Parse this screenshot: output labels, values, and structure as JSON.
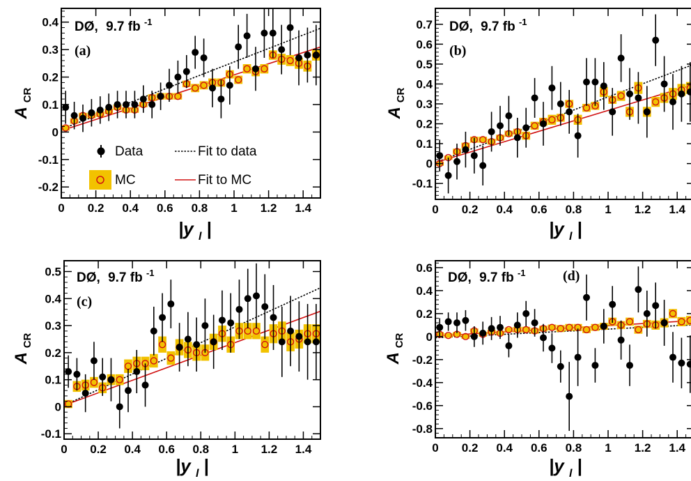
{
  "figure": {
    "colors": {
      "data_marker": "#000000",
      "mc_box": "#f2c200",
      "mc_marker": "#d01010",
      "fit_mc": "#d01010",
      "fit_data": "#000000",
      "frame": "#000000"
    },
    "legend": {
      "data": "Data",
      "fit_data": "Fit to data",
      "mc": "MC",
      "fit_mc": "Fit to MC"
    }
  },
  "chart_data": [
    {
      "type": "scatter",
      "panel_label": "(a)",
      "experiment": "DØ,",
      "lumi_value": "9.7 fb",
      "lumi_exp": "-1",
      "ylabel_main": "A",
      "ylabel_sub": "CR",
      "xlabel_main": "|y",
      "xlabel_sub": "l",
      "xlabel_end": "|",
      "xlim": [
        0,
        1.5
      ],
      "ylim": [
        -0.24,
        0.45
      ],
      "x_ticks": [
        0,
        0.2,
        0.4,
        0.6,
        0.8,
        1,
        1.2,
        1.4
      ],
      "x_tick_labels": [
        "0",
        "0.2",
        "0.4",
        "0.6",
        "0.8",
        "1",
        "1.2",
        "1.4"
      ],
      "y_ticks": [
        -0.2,
        -0.1,
        0,
        0.1,
        0.2,
        0.3,
        0.4
      ],
      "y_tick_labels": [
        "-0.2",
        "-0.1",
        "0",
        "0.1",
        "0.2",
        "0.3",
        "0.4"
      ],
      "legend_visible": true,
      "data": {
        "x": [
          0.025,
          0.075,
          0.125,
          0.175,
          0.225,
          0.275,
          0.325,
          0.375,
          0.425,
          0.475,
          0.525,
          0.575,
          0.625,
          0.675,
          0.725,
          0.775,
          0.825,
          0.875,
          0.925,
          0.975,
          1.025,
          1.075,
          1.125,
          1.175,
          1.225,
          1.275,
          1.325,
          1.375,
          1.425,
          1.475
        ],
        "y": [
          0.09,
          0.06,
          0.05,
          0.07,
          0.08,
          0.09,
          0.1,
          0.1,
          0.1,
          0.12,
          0.1,
          0.13,
          0.17,
          0.2,
          0.22,
          0.29,
          0.27,
          0.16,
          0.12,
          0.17,
          0.31,
          0.35,
          0.23,
          0.36,
          0.36,
          0.3,
          0.38,
          0.27,
          0.28,
          0.28
        ],
        "err": [
          0.06,
          0.05,
          0.05,
          0.05,
          0.05,
          0.05,
          0.05,
          0.05,
          0.05,
          0.05,
          0.05,
          0.05,
          0.06,
          0.06,
          0.06,
          0.06,
          0.07,
          0.07,
          0.07,
          0.07,
          0.08,
          0.08,
          0.08,
          0.09,
          0.09,
          0.09,
          0.1,
          0.1,
          0.1,
          0.11
        ]
      },
      "mc": {
        "x": [
          0.025,
          0.075,
          0.125,
          0.175,
          0.225,
          0.275,
          0.325,
          0.375,
          0.425,
          0.475,
          0.525,
          0.575,
          0.625,
          0.675,
          0.725,
          0.775,
          0.825,
          0.875,
          0.925,
          0.975,
          1.025,
          1.075,
          1.125,
          1.175,
          1.225,
          1.275,
          1.325,
          1.375,
          1.425,
          1.475
        ],
        "y": [
          0.015,
          0.04,
          0.06,
          0.06,
          0.065,
          0.075,
          0.09,
          0.08,
          0.08,
          0.1,
          0.125,
          0.13,
          0.13,
          0.13,
          0.175,
          0.16,
          0.17,
          0.18,
          0.18,
          0.21,
          0.19,
          0.23,
          0.22,
          0.23,
          0.28,
          0.265,
          0.26,
          0.25,
          0.24,
          0.28
        ],
        "err": [
          0.01,
          0.01,
          0.01,
          0.01,
          0.01,
          0.01,
          0.01,
          0.01,
          0.01,
          0.01,
          0.012,
          0.012,
          0.012,
          0.012,
          0.012,
          0.015,
          0.015,
          0.015,
          0.015,
          0.015,
          0.015,
          0.017,
          0.017,
          0.017,
          0.017,
          0.02,
          0.02,
          0.02,
          0.02,
          0.02
        ]
      },
      "fit_data": {
        "intercept": 0.01,
        "slope": 0.245
      },
      "fit_mc": {
        "intercept": 0.005,
        "slope": 0.203
      }
    },
    {
      "type": "scatter",
      "panel_label": "(b)",
      "experiment": "DØ,",
      "lumi_value": "9.7 fb",
      "lumi_exp": "-1",
      "ylabel_main": "A",
      "ylabel_sub": "CR",
      "xlabel_main": "|y",
      "xlabel_sub": "l",
      "xlabel_end": "|",
      "xlim": [
        0,
        1.5
      ],
      "ylim": [
        -0.18,
        0.78
      ],
      "x_ticks": [
        0,
        0.2,
        0.4,
        0.6,
        0.8,
        1,
        1.2,
        1.4
      ],
      "x_tick_labels": [
        "0",
        "0.2",
        "0.4",
        "0.6",
        "0.8",
        "1",
        "1.2",
        "1.4"
      ],
      "y_ticks": [
        -0.1,
        0,
        0.1,
        0.2,
        0.3,
        0.4,
        0.5,
        0.6,
        0.7
      ],
      "y_tick_labels": [
        "-0.1",
        "0",
        "0.1",
        "0.2",
        "0.3",
        "0.4",
        "0.5",
        "0.6",
        "0.7"
      ],
      "legend_visible": false,
      "data": {
        "x": [
          0.025,
          0.075,
          0.125,
          0.175,
          0.225,
          0.275,
          0.325,
          0.375,
          0.425,
          0.475,
          0.525,
          0.575,
          0.625,
          0.675,
          0.725,
          0.775,
          0.825,
          0.875,
          0.925,
          0.975,
          1.025,
          1.075,
          1.125,
          1.175,
          1.225,
          1.275,
          1.325,
          1.375,
          1.425,
          1.475
        ],
        "y": [
          0.04,
          -0.06,
          0.01,
          0.07,
          0.04,
          -0.01,
          0.16,
          0.19,
          0.24,
          0.13,
          0.18,
          0.33,
          0.2,
          0.38,
          0.3,
          0.26,
          0.14,
          0.41,
          0.41,
          0.39,
          0.26,
          0.53,
          0.35,
          0.33,
          0.26,
          0.62,
          0.4,
          0.31,
          0.35,
          0.36
        ],
        "err": [
          0.08,
          0.09,
          0.09,
          0.09,
          0.09,
          0.1,
          0.1,
          0.1,
          0.1,
          0.1,
          0.1,
          0.1,
          0.11,
          0.11,
          0.11,
          0.11,
          0.11,
          0.12,
          0.12,
          0.12,
          0.12,
          0.12,
          0.13,
          0.13,
          0.13,
          0.13,
          0.14,
          0.14,
          0.14,
          0.15
        ]
      },
      "mc": {
        "x": [
          0.025,
          0.075,
          0.125,
          0.175,
          0.225,
          0.275,
          0.325,
          0.375,
          0.425,
          0.475,
          0.525,
          0.575,
          0.625,
          0.675,
          0.725,
          0.775,
          0.825,
          0.875,
          0.925,
          0.975,
          1.025,
          1.075,
          1.125,
          1.175,
          1.225,
          1.275,
          1.325,
          1.375,
          1.425,
          1.475
        ],
        "y": [
          0.0,
          0.03,
          0.06,
          0.09,
          0.12,
          0.12,
          0.11,
          0.13,
          0.15,
          0.16,
          0.14,
          0.19,
          0.21,
          0.22,
          0.23,
          0.3,
          0.22,
          0.28,
          0.29,
          0.36,
          0.32,
          0.34,
          0.26,
          0.38,
          0.26,
          0.31,
          0.33,
          0.35,
          0.37,
          0.38
        ],
        "err": [
          0.01,
          0.01,
          0.015,
          0.015,
          0.015,
          0.015,
          0.015,
          0.015,
          0.015,
          0.015,
          0.02,
          0.02,
          0.02,
          0.025,
          0.02,
          0.02,
          0.025,
          0.02,
          0.02,
          0.025,
          0.02,
          0.025,
          0.025,
          0.03,
          0.025,
          0.025,
          0.025,
          0.03,
          0.03,
          0.03
        ]
      },
      "fit_data": {
        "intercept": 0.005,
        "slope": 0.33
      },
      "fit_mc": {
        "intercept": 0.005,
        "slope": 0.262
      }
    },
    {
      "type": "scatter",
      "panel_label": "(c)",
      "experiment": "DØ,",
      "lumi_value": "9.7 fb",
      "lumi_exp": "-1",
      "ylabel_main": "A",
      "ylabel_sub": "CR",
      "xlabel_main": "|y",
      "xlabel_sub": "l",
      "xlabel_end": "|",
      "xlim": [
        0,
        1.5
      ],
      "ylim": [
        -0.12,
        0.54
      ],
      "x_ticks": [
        0,
        0.2,
        0.4,
        0.6,
        0.8,
        1,
        1.2,
        1.4
      ],
      "x_tick_labels": [
        "0",
        "0.2",
        "0.4",
        "0.6",
        "0.8",
        "1",
        "1.2",
        "1.4"
      ],
      "y_ticks": [
        -0.1,
        0,
        0.1,
        0.2,
        0.3,
        0.4,
        0.5
      ],
      "y_tick_labels": [
        "-0.1",
        "0",
        "0.1",
        "0.2",
        "0.3",
        "0.4",
        "0.5"
      ],
      "legend_visible": false,
      "data": {
        "x": [
          0.025,
          0.075,
          0.125,
          0.175,
          0.225,
          0.275,
          0.325,
          0.375,
          0.425,
          0.475,
          0.525,
          0.575,
          0.625,
          0.675,
          0.725,
          0.775,
          0.825,
          0.875,
          0.925,
          0.975,
          1.025,
          1.075,
          1.125,
          1.175,
          1.225,
          1.275,
          1.325,
          1.375,
          1.425,
          1.475
        ],
        "y": [
          0.13,
          0.12,
          0.05,
          0.17,
          0.11,
          0.1,
          0.0,
          0.06,
          0.13,
          0.08,
          0.28,
          0.33,
          0.38,
          0.22,
          0.25,
          0.23,
          0.3,
          0.24,
          0.32,
          0.31,
          0.36,
          0.4,
          0.41,
          0.37,
          0.33,
          0.24,
          0.28,
          0.26,
          0.24,
          0.24
        ],
        "err": [
          0.06,
          0.06,
          0.07,
          0.07,
          0.07,
          0.08,
          0.08,
          0.08,
          0.08,
          0.08,
          0.09,
          0.09,
          0.09,
          0.09,
          0.1,
          0.1,
          0.1,
          0.1,
          0.11,
          0.11,
          0.11,
          0.11,
          0.12,
          0.12,
          0.12,
          0.13,
          0.13,
          0.13,
          0.14,
          0.14
        ]
      },
      "mc": {
        "x": [
          0.025,
          0.075,
          0.125,
          0.175,
          0.225,
          0.275,
          0.325,
          0.375,
          0.425,
          0.475,
          0.525,
          0.575,
          0.625,
          0.675,
          0.725,
          0.775,
          0.825,
          0.875,
          0.925,
          0.975,
          1.025,
          1.075,
          1.125,
          1.175,
          1.225,
          1.275,
          1.325,
          1.375,
          1.425,
          1.475
        ],
        "y": [
          0.01,
          0.075,
          0.08,
          0.09,
          0.07,
          0.1,
          0.1,
          0.15,
          0.16,
          0.16,
          0.17,
          0.23,
          0.18,
          0.22,
          0.21,
          0.2,
          0.2,
          0.24,
          0.27,
          0.23,
          0.28,
          0.28,
          0.28,
          0.23,
          0.27,
          0.28,
          0.24,
          0.25,
          0.27,
          0.27
        ],
        "err": [
          0.015,
          0.02,
          0.02,
          0.02,
          0.02,
          0.02,
          0.02,
          0.025,
          0.025,
          0.025,
          0.025,
          0.03,
          0.025,
          0.03,
          0.03,
          0.03,
          0.03,
          0.03,
          0.03,
          0.03,
          0.03,
          0.03,
          0.03,
          0.03,
          0.035,
          0.035,
          0.035,
          0.035,
          0.035,
          0.035
        ]
      },
      "fit_data": {
        "intercept": 0.005,
        "slope": 0.29
      },
      "fit_mc": {
        "intercept": 0.005,
        "slope": 0.232
      }
    },
    {
      "type": "scatter",
      "panel_label": "(d)",
      "experiment": "DØ,",
      "lumi_value": "9.7 fb",
      "lumi_exp": "-1",
      "ylabel_main": "A",
      "ylabel_sub": "CR",
      "xlabel_main": "|y",
      "xlabel_sub": "l",
      "xlabel_end": "|",
      "xlim": [
        0,
        1.5
      ],
      "ylim": [
        -0.88,
        0.66
      ],
      "x_ticks": [
        0,
        0.2,
        0.4,
        0.6,
        0.8,
        1,
        1.2,
        1.4
      ],
      "x_tick_labels": [
        "0",
        "0.2",
        "0.4",
        "0.6",
        "0.8",
        "1",
        "1.2",
        "1.4"
      ],
      "y_ticks": [
        -0.8,
        -0.6,
        -0.4,
        -0.2,
        0,
        0.2,
        0.4,
        0.6
      ],
      "y_tick_labels": [
        "-0.8",
        "-0.6",
        "-0.4",
        "-0.2",
        "0",
        "0.2",
        "0.4",
        "0.6"
      ],
      "legend_visible": false,
      "data": {
        "x": [
          0.025,
          0.075,
          0.125,
          0.175,
          0.225,
          0.275,
          0.325,
          0.375,
          0.425,
          0.475,
          0.525,
          0.575,
          0.625,
          0.675,
          0.725,
          0.775,
          0.825,
          0.875,
          0.925,
          0.975,
          1.025,
          1.075,
          1.125,
          1.175,
          1.225,
          1.275,
          1.325,
          1.375,
          1.425,
          1.475
        ],
        "y": [
          0.08,
          0.13,
          0.12,
          0.14,
          0.0,
          0.03,
          0.07,
          0.08,
          -0.08,
          0.1,
          0.2,
          0.12,
          -0.01,
          -0.1,
          -0.26,
          -0.52,
          -0.18,
          0.34,
          -0.25,
          0.09,
          0.28,
          -0.03,
          -0.25,
          0.41,
          0.2,
          0.27,
          0.12,
          -0.18,
          -0.23,
          -0.24
        ],
        "err": [
          0.08,
          0.08,
          0.09,
          0.09,
          0.09,
          0.1,
          0.1,
          0.1,
          0.1,
          0.11,
          0.11,
          0.12,
          0.12,
          0.13,
          0.14,
          0.3,
          0.25,
          0.2,
          0.15,
          0.15,
          0.16,
          0.17,
          0.18,
          0.2,
          0.2,
          0.2,
          0.2,
          0.22,
          0.22,
          0.25
        ]
      },
      "mc": {
        "x": [
          0.025,
          0.075,
          0.125,
          0.175,
          0.225,
          0.275,
          0.325,
          0.375,
          0.425,
          0.475,
          0.525,
          0.575,
          0.625,
          0.675,
          0.725,
          0.775,
          0.825,
          0.875,
          0.925,
          0.975,
          1.025,
          1.075,
          1.125,
          1.175,
          1.225,
          1.275,
          1.325,
          1.375,
          1.425,
          1.475
        ],
        "y": [
          0.02,
          0.01,
          0.02,
          0.0,
          0.05,
          0.02,
          0.04,
          0.03,
          0.06,
          0.06,
          0.06,
          0.05,
          0.07,
          0.08,
          0.07,
          0.08,
          0.08,
          0.06,
          0.08,
          0.09,
          0.13,
          0.1,
          0.13,
          0.06,
          0.11,
          0.1,
          0.12,
          0.2,
          0.13,
          0.14
        ],
        "err": [
          0.02,
          0.02,
          0.02,
          0.02,
          0.02,
          0.02,
          0.02,
          0.02,
          0.02,
          0.025,
          0.025,
          0.025,
          0.025,
          0.025,
          0.03,
          0.03,
          0.03,
          0.03,
          0.03,
          0.03,
          0.035,
          0.035,
          0.035,
          0.035,
          0.035,
          0.04,
          0.04,
          0.04,
          0.04,
          0.04
        ]
      },
      "fit_data": {
        "intercept": -0.01,
        "slope": 0.075
      },
      "fit_mc": {
        "intercept": 0.005,
        "slope": 0.09
      }
    }
  ]
}
